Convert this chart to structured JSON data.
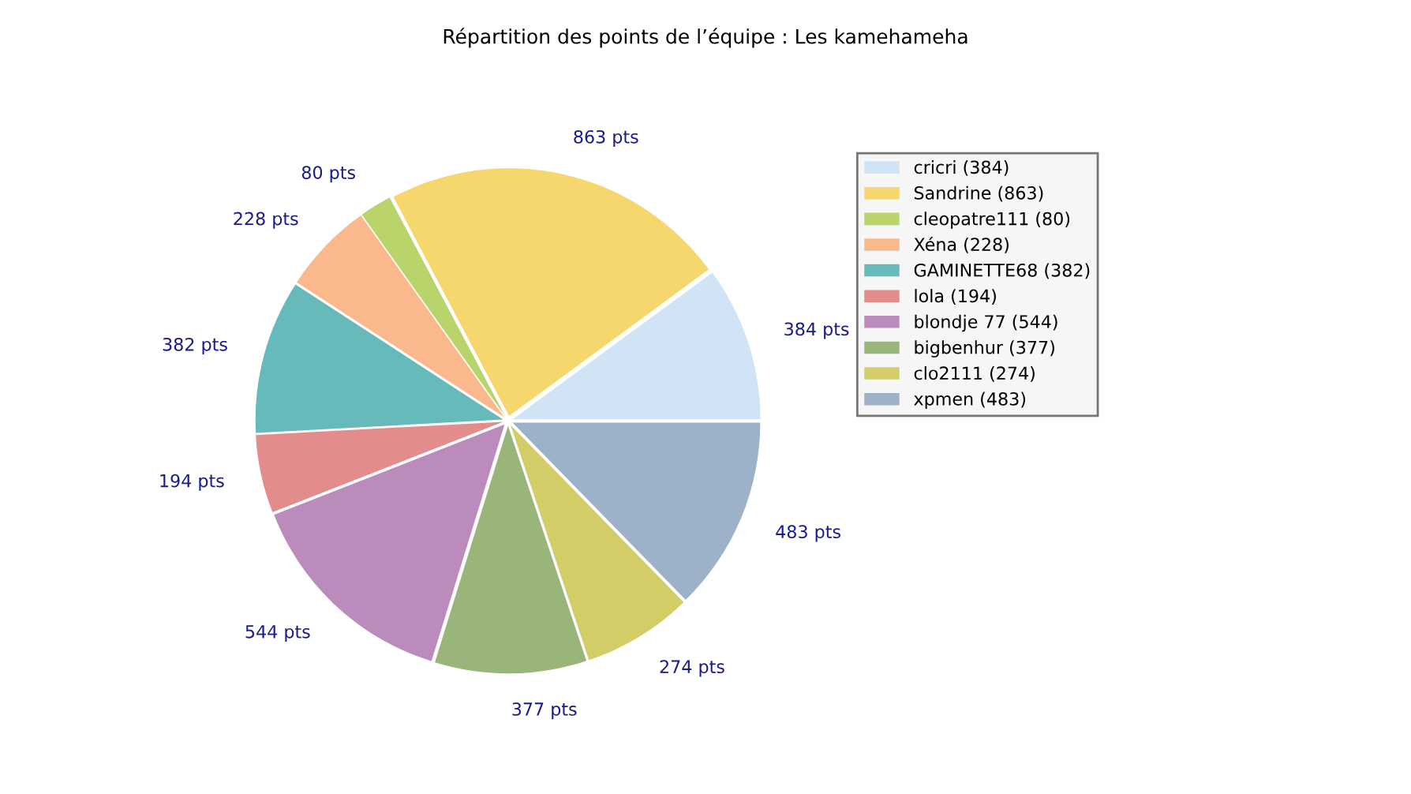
{
  "chart_data": {
    "type": "pie",
    "title": "Répartition des points de l’équipe : Les kamehameha",
    "categories": [
      "cricri (384)",
      "Sandrine (863)",
      "cleopatre111 (80)",
      "Xéna (228)",
      "GAMINETTE68 (382)",
      "lola (194)",
      "blondje 77 (544)",
      "bigbenhur (377)",
      "clo2111 (274)",
      "xpmen (483)"
    ],
    "values": [
      384,
      863,
      80,
      228,
      382,
      194,
      544,
      377,
      274,
      483
    ],
    "value_labels": [
      "384 pts",
      "863 pts",
      "80 pts",
      "228 pts",
      "382 pts",
      "194 pts",
      "544 pts",
      "377 pts",
      "274 pts",
      "483 pts"
    ],
    "colors": [
      "#d0e4f6",
      "#f5d76e",
      "#b8d46a",
      "#f9b98c",
      "#66baba",
      "#e38c8c",
      "#bb8cbb",
      "#9ab57a",
      "#d3cd68",
      "#9db1c8"
    ],
    "legend": "right"
  }
}
